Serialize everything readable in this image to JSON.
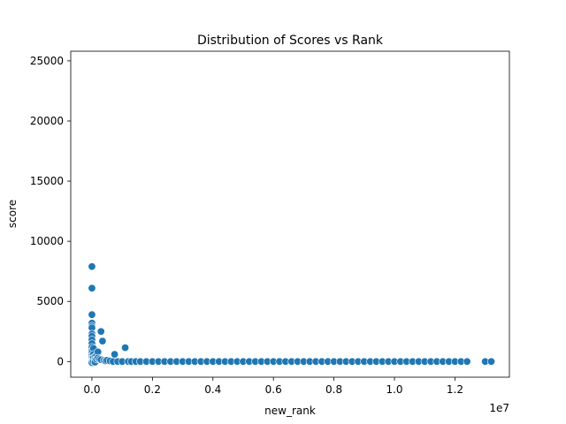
{
  "chart_data": {
    "type": "scatter",
    "title": "Distribution of Scores vs Rank",
    "xlabel": "new_rank",
    "ylabel": "score",
    "x_offset_label": "1e7",
    "x_scale": 10000000,
    "xlim": [
      -700000,
      13800000
    ],
    "ylim": [
      -1300,
      25800
    ],
    "x_ticks": [
      0,
      2000000,
      4000000,
      6000000,
      8000000,
      10000000,
      12000000
    ],
    "x_tick_labels": [
      "0.0",
      "0.2",
      "0.4",
      "0.6",
      "0.8",
      "1.0",
      "1.2"
    ],
    "y_ticks": [
      0,
      5000,
      10000,
      15000,
      20000,
      25000
    ],
    "y_tick_labels": [
      "0",
      "5000",
      "10000",
      "15000",
      "20000",
      "25000"
    ],
    "grid": false,
    "point_color": "#1f77b4",
    "points": [
      [
        0,
        7900
      ],
      [
        0,
        6100
      ],
      [
        0,
        3900
      ],
      [
        0,
        3200
      ],
      [
        0,
        2950
      ],
      [
        0,
        2800
      ],
      [
        0,
        2300
      ],
      [
        0,
        2100
      ],
      [
        0,
        1800
      ],
      [
        0,
        1500
      ],
      [
        0,
        1200
      ],
      [
        0,
        900
      ],
      [
        0,
        700
      ],
      [
        0,
        500
      ],
      [
        0,
        300
      ],
      [
        0,
        150
      ],
      [
        0,
        50
      ],
      [
        0,
        0
      ],
      [
        0,
        -100
      ],
      [
        50000,
        1100
      ],
      [
        50000,
        600
      ],
      [
        50000,
        300
      ],
      [
        50000,
        0
      ],
      [
        100000,
        400
      ],
      [
        100000,
        100
      ],
      [
        100000,
        -50
      ],
      [
        150000,
        500
      ],
      [
        150000,
        200
      ],
      [
        200000,
        800
      ],
      [
        200000,
        300
      ],
      [
        250000,
        200
      ],
      [
        300000,
        2500
      ],
      [
        300000,
        150
      ],
      [
        350000,
        1700
      ],
      [
        400000,
        100
      ],
      [
        450000,
        50
      ],
      [
        500000,
        100
      ],
      [
        600000,
        50
      ],
      [
        700000,
        0
      ],
      [
        750000,
        600
      ],
      [
        850000,
        0
      ],
      [
        1000000,
        0
      ],
      [
        1100000,
        1150
      ],
      [
        1200000,
        0
      ],
      [
        1300000,
        0
      ],
      [
        1450000,
        0
      ],
      [
        1600000,
        0
      ],
      [
        1800000,
        0
      ],
      [
        2000000,
        0
      ],
      [
        2200000,
        0
      ],
      [
        2400000,
        0
      ],
      [
        2600000,
        0
      ],
      [
        2800000,
        0
      ],
      [
        3000000,
        0
      ],
      [
        3200000,
        0
      ],
      [
        3400000,
        0
      ],
      [
        3600000,
        0
      ],
      [
        3800000,
        0
      ],
      [
        4000000,
        0
      ],
      [
        4200000,
        0
      ],
      [
        4400000,
        0
      ],
      [
        4600000,
        0
      ],
      [
        4800000,
        0
      ],
      [
        5000000,
        0
      ],
      [
        5200000,
        0
      ],
      [
        5400000,
        0
      ],
      [
        5600000,
        0
      ],
      [
        5800000,
        0
      ],
      [
        6000000,
        0
      ],
      [
        6200000,
        0
      ],
      [
        6400000,
        0
      ],
      [
        6600000,
        0
      ],
      [
        6800000,
        0
      ],
      [
        7000000,
        0
      ],
      [
        7200000,
        0
      ],
      [
        7400000,
        0
      ],
      [
        7600000,
        0
      ],
      [
        7800000,
        0
      ],
      [
        8000000,
        0
      ],
      [
        8200000,
        0
      ],
      [
        8400000,
        0
      ],
      [
        8600000,
        0
      ],
      [
        8800000,
        0
      ],
      [
        9000000,
        0
      ],
      [
        9200000,
        0
      ],
      [
        9400000,
        0
      ],
      [
        9600000,
        0
      ],
      [
        9800000,
        0
      ],
      [
        10000000,
        0
      ],
      [
        10200000,
        0
      ],
      [
        10400000,
        0
      ],
      [
        10600000,
        0
      ],
      [
        10800000,
        0
      ],
      [
        11000000,
        0
      ],
      [
        11200000,
        0
      ],
      [
        11400000,
        0
      ],
      [
        11600000,
        0
      ],
      [
        11800000,
        0
      ],
      [
        12000000,
        0
      ],
      [
        12200000,
        0
      ],
      [
        12400000,
        0
      ],
      [
        13000000,
        0
      ],
      [
        13200000,
        0
      ]
    ]
  }
}
